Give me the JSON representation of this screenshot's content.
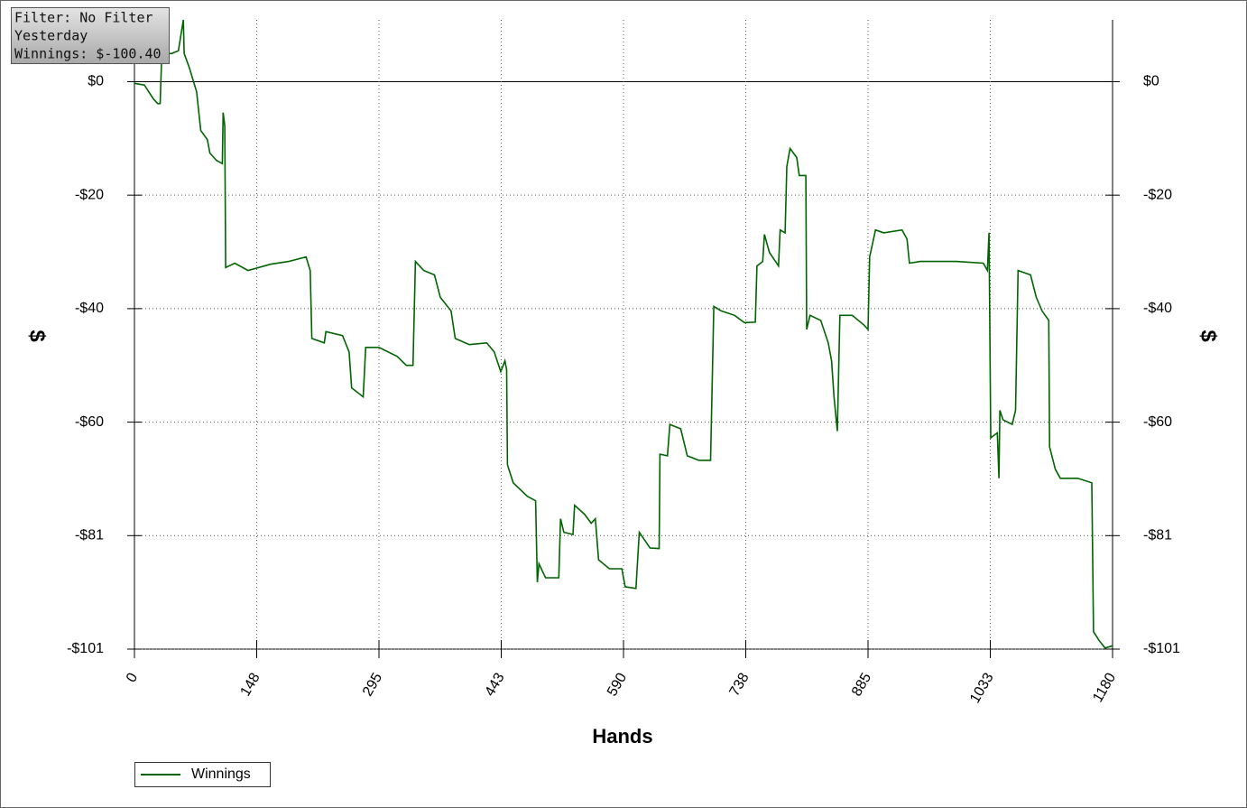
{
  "chart_data": {
    "type": "line",
    "annotations": [
      "Filter: No Filter",
      "Yesterday",
      "Winnings: $-100.40"
    ],
    "xlabel": "Hands",
    "ylabel": "$",
    "x": [
      0,
      12,
      23,
      28,
      31,
      33,
      45,
      53,
      59,
      60,
      66,
      75,
      80,
      88,
      91,
      99,
      106,
      107,
      109,
      110,
      121,
      137,
      164,
      186,
      207,
      212,
      214,
      229,
      231,
      251,
      259,
      262,
      276,
      279,
      295,
      317,
      328,
      336,
      339,
      349,
      362,
      369,
      382,
      387,
      404,
      425,
      434,
      442,
      447,
      449,
      450,
      457,
      474,
      484,
      486,
      488,
      496,
      512,
      514,
      518,
      529,
      531,
      543,
      551,
      556,
      560,
      573,
      588,
      592,
      605,
      609,
      622,
      633,
      634,
      643,
      646,
      659,
      667,
      681,
      695,
      699,
      708,
      724,
      736,
      749,
      751,
      758,
      760,
      766,
      777,
      779,
      785,
      787,
      791,
      799,
      802,
      810,
      811,
      815,
      828,
      837,
      841,
      844,
      848,
      851,
      866,
      880,
      885,
      887,
      894,
      904,
      926,
      932,
      935,
      948,
      970,
      991,
      1024,
      1029,
      1031,
      1033,
      1041,
      1043,
      1044,
      1048,
      1059,
      1063,
      1066,
      1081,
      1088,
      1095,
      1103,
      1104,
      1111,
      1117,
      1138,
      1155,
      1157,
      1164,
      1171,
      1180
    ],
    "series": [
      {
        "name": "Winnings",
        "color": "#006400",
        "values": [
          -0.3,
          -0.6,
          -3.1,
          -3.9,
          -3.9,
          5.0,
          5.0,
          5.5,
          11,
          5.0,
          2.6,
          -1.8,
          -8.7,
          -10.3,
          -12.7,
          -14,
          -14.6,
          -5.5,
          -7.9,
          -33.1,
          -32.3,
          -33.6,
          -32.5,
          -32,
          -31.2,
          -33.6,
          -45.7,
          -46.5,
          -44.5,
          -45.2,
          -48.1,
          -54.5,
          -56.1,
          -47.3,
          -47.3,
          -48.9,
          -50.5,
          -50.5,
          -32,
          -33.6,
          -34.4,
          -38.4,
          -40.8,
          -45.7,
          -46.8,
          -46.5,
          -48.1,
          -51.6,
          -49.7,
          -51.3,
          -68.2,
          -71.4,
          -73.8,
          -74.6,
          -89.1,
          -85.8,
          -88.3,
          -88.3,
          -77.8,
          -80.2,
          -80.6,
          -75.4,
          -77,
          -78.6,
          -77.8,
          -85.1,
          -86.7,
          -86.7,
          -89.9,
          -90.2,
          -80.2,
          -83,
          -83.1,
          -66.3,
          -66.6,
          -61,
          -61.8,
          -66.6,
          -67.4,
          -67.4,
          -40,
          -40.8,
          -41.6,
          -42.9,
          -42.8,
          -32.8,
          -32,
          -27.2,
          -30.4,
          -32.8,
          -26.4,
          -26.9,
          -15.1,
          -11.9,
          -13.5,
          -16.7,
          -16.7,
          -44.1,
          -41.6,
          -42.5,
          -46.5,
          -49.7,
          -56.1,
          -62.2,
          -41.6,
          -41.6,
          -43.3,
          -44.1,
          -31.2,
          -26.4,
          -26.9,
          -26.4,
          -28,
          -32.3,
          -32,
          -32,
          -32,
          -32.3,
          -33.6,
          -26.9,
          -63.4,
          -62.5,
          -70.6,
          -58.5,
          -60.2,
          -61,
          -58.5,
          -33.6,
          -34.4,
          -38.4,
          -40.8,
          -42.5,
          -65,
          -69,
          -70.6,
          -70.6,
          -71.4,
          -97.9,
          -99.5,
          -100.8,
          -100.4
        ]
      }
    ],
    "xlim": [
      0,
      1180
    ],
    "ylim": [
      -101,
      11
    ],
    "xticks": [
      0,
      {
        "value": 147.5,
        "label": "148"
      },
      295,
      {
        "value": 442.5,
        "label": "443"
      },
      590,
      {
        "value": 737.5,
        "label": "738"
      },
      885,
      {
        "value": 1032.5,
        "label": "1033"
      },
      1180
    ],
    "yticks": [
      {
        "value": 0,
        "label": "$0"
      },
      {
        "value": -20.2,
        "label": "-$20"
      },
      {
        "value": -40.4,
        "label": "-$40"
      },
      {
        "value": -60.6,
        "label": "-$60"
      },
      {
        "value": -80.8,
        "label": "-$81"
      },
      {
        "value": -101,
        "label": "-$101"
      }
    ],
    "grid": true,
    "legend": "bottom-left"
  }
}
